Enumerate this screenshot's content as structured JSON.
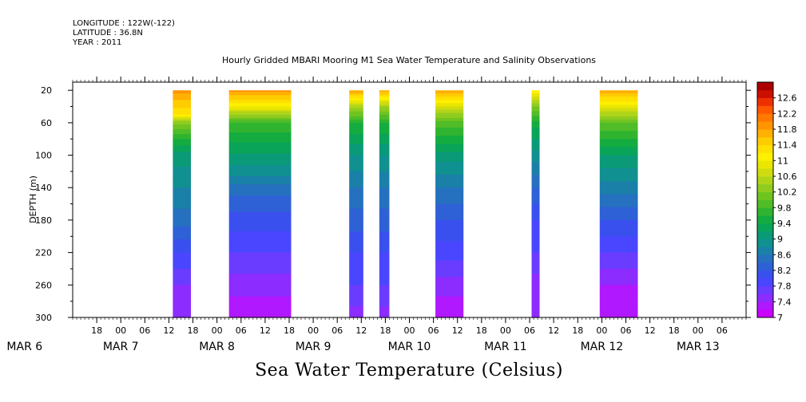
{
  "header": {
    "longitude": "LONGITUDE : 122W(-122)",
    "latitude": "LATITUDE : 36.8N",
    "year": "YEAR : 2011"
  },
  "chart_data": {
    "type": "heatmap",
    "title": "Hourly Gridded MBARI Mooring M1 Sea Water Temperature and Salinity Observations",
    "bottom_title": "Sea Water Temperature (Celsius)",
    "ylabel": "DEPTH (m)",
    "y_reversed": true,
    "ylim": [
      10,
      300
    ],
    "y_ticks": [
      20,
      60,
      100,
      140,
      180,
      220,
      260,
      300
    ],
    "x_unit": "hours since MAR 6 00:00",
    "xlim": [
      12,
      180
    ],
    "x_ticks": [
      18,
      24,
      30,
      36,
      42,
      48,
      54,
      60,
      66,
      72,
      78,
      84,
      90,
      96,
      102,
      108,
      114,
      120,
      126,
      132,
      138,
      144,
      150,
      156,
      162,
      168,
      174
    ],
    "x_tick_labels": [
      "18",
      "00",
      "06",
      "12",
      "18",
      "00",
      "06",
      "12",
      "18",
      "00",
      "06",
      "12",
      "18",
      "00",
      "06",
      "12",
      "18",
      "00",
      "06",
      "12",
      "18",
      "00",
      "06",
      "12",
      "18",
      "00",
      "06"
    ],
    "day_labels": [
      {
        "text": "MAR 6",
        "hours": 0
      },
      {
        "text": "MAR 7",
        "hours": 24
      },
      {
        "text": "MAR 8",
        "hours": 48
      },
      {
        "text": "MAR 9",
        "hours": 72
      },
      {
        "text": "MAR 10",
        "hours": 96
      },
      {
        "text": "MAR 11",
        "hours": 120
      },
      {
        "text": "MAR 12",
        "hours": 144
      },
      {
        "text": "MAR 13",
        "hours": 168
      }
    ],
    "colorbar": {
      "levels": [
        7.0,
        7.2,
        7.4,
        7.6,
        7.8,
        8.0,
        8.2,
        8.4,
        8.6,
        8.8,
        9.0,
        9.2,
        9.4,
        9.6,
        9.8,
        10.0,
        10.2,
        10.4,
        10.6,
        10.8,
        11.0,
        11.2,
        11.4,
        11.6,
        11.8,
        12.0,
        12.2,
        12.4,
        12.6,
        12.8
      ],
      "labels": [
        "7",
        "7.4",
        "7.8",
        "8.2",
        "8.6",
        "9",
        "9.4",
        "9.8",
        "10.2",
        "10.6",
        "11",
        "11.4",
        "11.8",
        "12.2",
        "12.6"
      ],
      "colors": [
        "#cc00ff",
        "#b018ff",
        "#8c2cff",
        "#6a3cff",
        "#4a46ff",
        "#3a50ee",
        "#2e60d6",
        "#2670c0",
        "#1a80a8",
        "#109090",
        "#0a9a78",
        "#0aa458",
        "#14ac40",
        "#30b430",
        "#50bc28",
        "#70c420",
        "#90cc20",
        "#b0d418",
        "#d0dc10",
        "#eae600",
        "#fff000",
        "#ffe000",
        "#ffcc00",
        "#ffb000",
        "#ff9400",
        "#ff7800",
        "#ff5800",
        "#ee3000",
        "#cc1000",
        "#aa0000"
      ]
    },
    "segments": [
      {
        "start": 37,
        "end": 41.5,
        "profile": [
          [
            20,
            11.9
          ],
          [
            50,
            11.2
          ],
          [
            60,
            10.3
          ],
          [
            80,
            9.6
          ],
          [
            100,
            9.1
          ],
          [
            140,
            8.8
          ],
          [
            180,
            8.5
          ],
          [
            220,
            8.0
          ],
          [
            260,
            7.6
          ],
          [
            300,
            7.4
          ]
        ]
      },
      {
        "start": 51,
        "end": 66.5,
        "profile": [
          [
            20,
            11.9
          ],
          [
            40,
            11.0
          ],
          [
            60,
            9.8
          ],
          [
            90,
            9.3
          ],
          [
            120,
            8.9
          ],
          [
            140,
            8.5
          ],
          [
            180,
            8.1
          ],
          [
            220,
            7.8
          ],
          [
            260,
            7.5
          ],
          [
            300,
            7.2
          ]
        ]
      },
      {
        "start": 81,
        "end": 84.5,
        "profile": [
          [
            20,
            11.8
          ],
          [
            40,
            10.5
          ],
          [
            60,
            9.6
          ],
          [
            100,
            9.0
          ],
          [
            140,
            8.6
          ],
          [
            180,
            8.3
          ],
          [
            220,
            8.0
          ],
          [
            260,
            7.8
          ],
          [
            300,
            7.5
          ]
        ]
      },
      {
        "start": 88.5,
        "end": 91,
        "profile": [
          [
            20,
            11.8
          ],
          [
            40,
            10.4
          ],
          [
            60,
            9.6
          ],
          [
            100,
            9.0
          ],
          [
            140,
            8.6
          ],
          [
            180,
            8.3
          ],
          [
            220,
            8.0
          ],
          [
            260,
            7.8
          ],
          [
            300,
            7.5
          ]
        ]
      },
      {
        "start": 102.5,
        "end": 109.5,
        "profile": [
          [
            20,
            11.8
          ],
          [
            40,
            10.8
          ],
          [
            60,
            9.9
          ],
          [
            100,
            9.1
          ],
          [
            140,
            8.6
          ],
          [
            180,
            8.2
          ],
          [
            220,
            7.9
          ],
          [
            260,
            7.5
          ],
          [
            300,
            7.2
          ]
        ]
      },
      {
        "start": 126.5,
        "end": 128.5,
        "profile": [
          [
            20,
            11.2
          ],
          [
            40,
            10.2
          ],
          [
            60,
            9.5
          ],
          [
            100,
            8.9
          ],
          [
            140,
            8.4
          ],
          [
            180,
            8.0
          ],
          [
            220,
            7.8
          ],
          [
            260,
            7.5
          ],
          [
            300,
            7.4
          ]
        ]
      },
      {
        "start": 143.5,
        "end": 153,
        "profile": [
          [
            20,
            11.8
          ],
          [
            40,
            10.9
          ],
          [
            60,
            10.0
          ],
          [
            100,
            9.2
          ],
          [
            140,
            8.7
          ],
          [
            180,
            8.2
          ],
          [
            220,
            7.8
          ],
          [
            260,
            7.4
          ],
          [
            300,
            7.2
          ]
        ]
      }
    ]
  }
}
